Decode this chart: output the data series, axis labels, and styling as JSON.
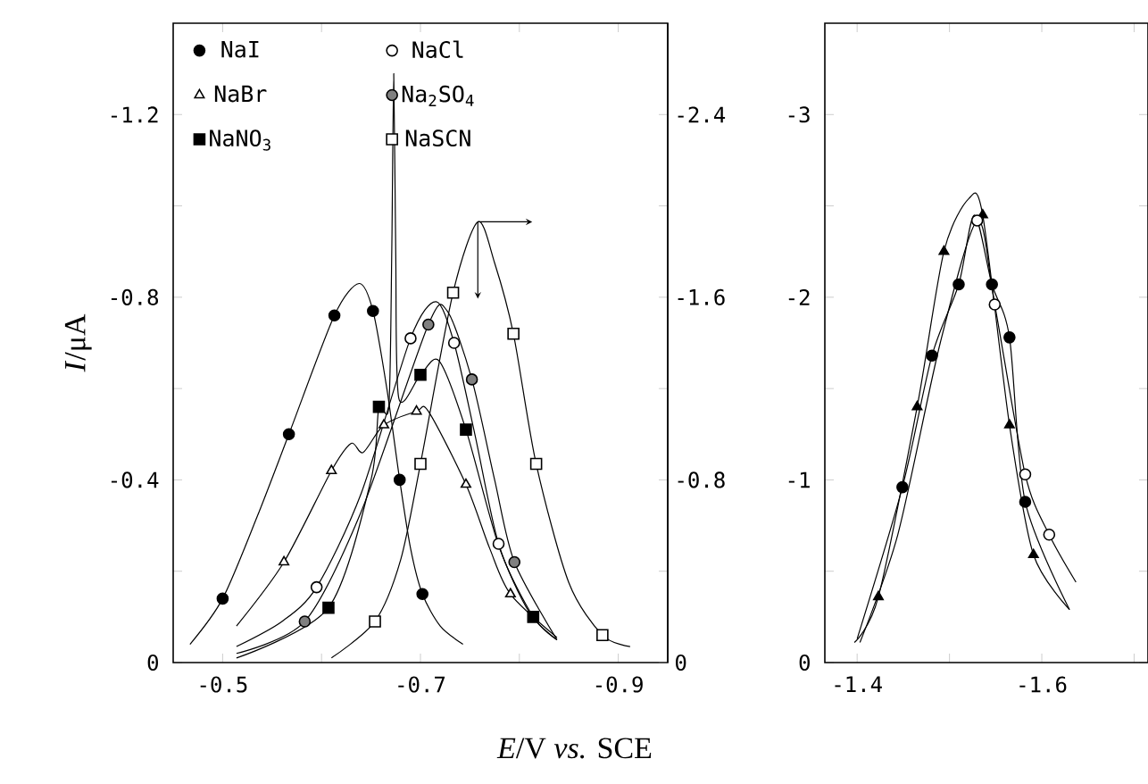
{
  "chart_data": [
    {
      "type": "line",
      "xlabel": "*E*/V *vs.* SCE",
      "ylabel": "*I*/μA",
      "legend": "top",
      "xlim": [
        -0.45,
        -0.95
      ],
      "ylim": [
        0,
        -1.4
      ],
      "y2lim": [
        0,
        -2.8
      ],
      "xticks": [
        -0.5,
        {
          "value": -0.6,
          "label": null
        },
        -0.7,
        {
          "value": -0.8,
          "label": null
        },
        -0.9
      ],
      "yticks": [
        0,
        {
          "value": -0.2,
          "label": null
        },
        -0.4,
        {
          "value": -0.6,
          "label": null
        },
        -0.8,
        {
          "value": -1.0,
          "label": null
        },
        -1.2
      ],
      "y2ticks": [
        0,
        {
          "value": -0.4,
          "label": null
        },
        -0.8,
        {
          "value": -1.2,
          "label": null
        },
        -1.6,
        {
          "value": -2.0,
          "label": null
        },
        -2.4
      ],
      "series": [
        {
          "color": "#000000",
          "x": [
            -0.467,
            -0.5,
            -0.535,
            -0.567,
            -0.613,
            -0.638,
            -0.652,
            -0.666,
            -0.679,
            -0.69,
            -0.702,
            -0.72,
            -0.743
          ],
          "values": [
            -0.04,
            -0.14,
            -0.32,
            -0.5,
            -0.76,
            -0.83,
            -0.77,
            -0.6,
            -0.4,
            -0.25,
            -0.15,
            -0.08,
            -0.04
          ]
        },
        {
          "color": "#000000",
          "x": [
            -0.514,
            -0.56,
            -0.595,
            -0.64,
            -0.69,
            -0.716,
            -0.734,
            -0.755,
            -0.779,
            -0.81,
            -0.838
          ],
          "values": [
            -0.035,
            -0.09,
            -0.165,
            -0.37,
            -0.71,
            -0.79,
            -0.7,
            -0.5,
            -0.26,
            -0.11,
            -0.05
          ]
        },
        {
          "color": "#000000",
          "x": [
            -0.514,
            -0.562,
            -0.61,
            -0.63,
            -0.642,
            -0.663,
            -0.696,
            -0.708,
            -0.746,
            -0.77,
            -0.791,
            -0.838
          ],
          "values": [
            -0.08,
            -0.22,
            -0.42,
            -0.48,
            -0.46,
            -0.52,
            -0.55,
            -0.55,
            -0.39,
            -0.25,
            -0.15,
            -0.055
          ]
        },
        {
          "color": "#000000",
          "x": [
            -0.514,
            -0.583,
            -0.64,
            -0.708,
            -0.727,
            -0.752,
            -0.775,
            -0.795,
            -0.838
          ],
          "values": [
            -0.02,
            -0.09,
            -0.33,
            -0.74,
            -0.77,
            -0.62,
            -0.4,
            -0.22,
            -0.05
          ]
        },
        {
          "color": "#000000",
          "x": [
            -0.514,
            -0.607,
            -0.65,
            -0.658,
            -0.668,
            -0.671,
            -0.673,
            -0.675,
            -0.678,
            -0.7,
            -0.719,
            -0.746,
            -0.78,
            -0.814,
            -0.838
          ],
          "values": [
            -0.01,
            -0.12,
            -0.4,
            -0.56,
            -0.56,
            -0.9,
            -1.29,
            -0.9,
            -0.58,
            -0.63,
            -0.66,
            -0.51,
            -0.25,
            -0.1,
            -0.05
          ]
        },
        {
          "axis": "y2",
          "color": "#000000",
          "x": [
            -0.61,
            -0.654,
            -0.68,
            -0.7,
            -0.733,
            -0.758,
            -0.775,
            -0.794,
            -0.817,
            -0.85,
            -0.884,
            -0.912
          ],
          "values": [
            -0.02,
            -0.18,
            -0.45,
            -0.87,
            -1.62,
            -1.93,
            -1.75,
            -1.44,
            -0.87,
            -0.35,
            -0.12,
            -0.07
          ]
        },
        {
          "type": "scatter",
          "name": "NaI",
          "color": "#000000",
          "marker": "circle",
          "x": [
            -0.5,
            -0.567,
            -0.613,
            -0.652,
            -0.679,
            -0.702
          ],
          "values": [
            -0.14,
            -0.5,
            -0.76,
            -0.77,
            -0.4,
            -0.15
          ]
        },
        {
          "type": "scatter",
          "name": "NaCl",
          "color": "#ffffff",
          "marker": "circle",
          "x": [
            -0.595,
            -0.69,
            -0.734,
            -0.779
          ],
          "values": [
            -0.165,
            -0.71,
            -0.7,
            -0.26
          ]
        },
        {
          "type": "scatter",
          "name": "NaBr",
          "color": "#ffffff",
          "marker": "triangle",
          "x": [
            -0.562,
            -0.61,
            -0.663,
            -0.696,
            -0.746,
            -0.791
          ],
          "values": [
            -0.22,
            -0.42,
            -0.52,
            -0.55,
            -0.39,
            -0.15
          ]
        },
        {
          "type": "scatter",
          "name": "Na$_{2}$SO$_{4}$",
          "color": "#808080",
          "marker": "circle",
          "x": [
            -0.583,
            -0.708,
            -0.752,
            -0.795
          ],
          "values": [
            -0.09,
            -0.74,
            -0.62,
            -0.22
          ]
        },
        {
          "type": "scatter",
          "name": "NaNO$_{3}$",
          "color": "#000000",
          "marker": "square",
          "x": [
            -0.607,
            -0.658,
            -0.7,
            -0.746,
            -0.814
          ],
          "values": [
            -0.12,
            -0.56,
            -0.63,
            -0.51,
            -0.1
          ]
        },
        {
          "type": "scatter",
          "name": "NaSCN",
          "axis": "y2",
          "color": "#ffffff",
          "marker": "square",
          "x": [
            -0.654,
            -0.7,
            -0.733,
            -0.794,
            -0.817,
            -0.884
          ],
          "values": [
            -0.18,
            -0.87,
            -1.62,
            -1.44,
            -0.87,
            -0.12
          ]
        }
      ]
    },
    {
      "type": "line",
      "xlim": [
        -1.365,
        -1.715
      ],
      "ylim": [
        0,
        -3.5
      ],
      "xticks": [
        -1.4,
        {
          "value": -1.5,
          "label": null
        },
        -1.6,
        {
          "value": -1.7,
          "label": null
        }
      ],
      "yticks": [
        0,
        {
          "value": -0.5,
          "label": null
        },
        -1,
        {
          "value": -1.5,
          "label": null
        },
        -2,
        {
          "value": -2.5,
          "label": null
        },
        -3
      ],
      "series": [
        {
          "color": "#000000",
          "x": [
            -1.397,
            -1.423,
            -1.465,
            -1.494,
            -1.521,
            -1.536,
            -1.565,
            -1.591,
            -1.63
          ],
          "values": [
            -0.11,
            -0.36,
            -1.4,
            -2.25,
            -2.54,
            -2.45,
            -1.3,
            -0.59,
            -0.29
          ]
        },
        {
          "color": "#000000",
          "x": [
            -1.4,
            -1.449,
            -1.481,
            -1.51,
            -1.527,
            -1.546,
            -1.565,
            -1.582,
            -1.63
          ],
          "values": [
            -0.13,
            -0.96,
            -1.68,
            -2.07,
            -2.45,
            -2.07,
            -1.78,
            -0.88,
            -0.29
          ]
        },
        {
          "color": "#000000",
          "x": [
            -1.403,
            -1.444,
            -1.49,
            -1.53,
            -1.549,
            -1.582,
            -1.608,
            -1.637
          ],
          "values": [
            -0.11,
            -0.7,
            -1.75,
            -2.42,
            -1.96,
            -1.03,
            -0.7,
            -0.44
          ]
        },
        {
          "type": "scatter",
          "color": "#000000",
          "marker": "triangle",
          "x": [
            -1.423,
            -1.465,
            -1.494,
            -1.536,
            -1.565,
            -1.591
          ],
          "values": [
            -0.36,
            -1.4,
            -2.25,
            -2.45,
            -1.3,
            -0.59
          ]
        },
        {
          "type": "scatter",
          "color": "#000000",
          "marker": "circle",
          "x": [
            -1.449,
            -1.481,
            -1.51,
            -1.546,
            -1.565,
            -1.582
          ],
          "values": [
            -0.96,
            -1.68,
            -2.07,
            -2.07,
            -1.78,
            -0.88
          ]
        },
        {
          "type": "scatter",
          "color": "#ffffff",
          "marker": "circle",
          "x": [
            -1.53,
            -1.549,
            -1.582,
            -1.608
          ],
          "values": [
            -2.42,
            -1.96,
            -1.03,
            -0.7
          ]
        }
      ]
    }
  ]
}
